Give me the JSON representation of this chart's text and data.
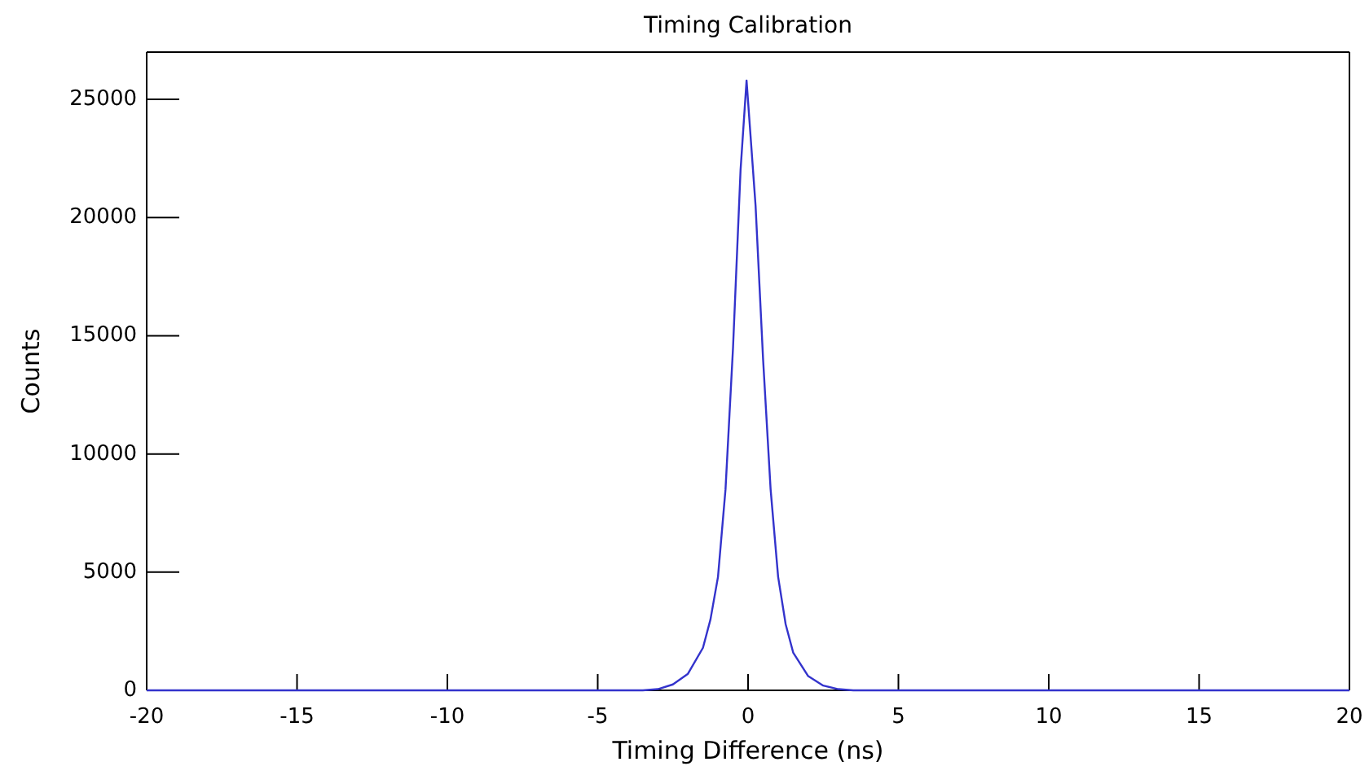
{
  "chart_data": {
    "type": "line",
    "title": "Timing Calibration",
    "xlabel": "Timing Difference (ns)",
    "ylabel": "Counts",
    "xlim": [
      -20,
      20
    ],
    "ylim": [
      0,
      27000
    ],
    "xticks": [
      -20,
      -15,
      -10,
      -5,
      0,
      5,
      10,
      15,
      20
    ],
    "yticks": [
      0,
      5000,
      10000,
      15000,
      20000,
      25000
    ],
    "series": [
      {
        "color": "#3333cc",
        "x": [
          -20,
          -3.5,
          -3,
          -2.5,
          -2,
          -1.5,
          -1.25,
          -1,
          -0.75,
          -0.5,
          -0.25,
          -0.05,
          0.25,
          0.5,
          0.75,
          1,
          1.25,
          1.5,
          2,
          2.5,
          3,
          3.5,
          20
        ],
        "values": [
          0,
          0,
          50,
          250,
          700,
          1800,
          3000,
          4800,
          8500,
          14500,
          22000,
          25800,
          20500,
          14000,
          8500,
          4800,
          2800,
          1600,
          600,
          200,
          50,
          0,
          0
        ]
      }
    ]
  }
}
